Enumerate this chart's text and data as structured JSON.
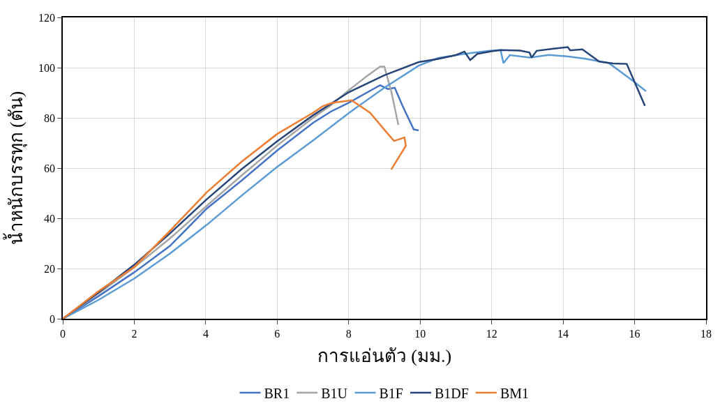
{
  "chart_data": {
    "type": "line",
    "xlabel": "การแอ่นตัว (มม.)",
    "ylabel": "น้ำหนักบรรทุก (ตัน)",
    "xlim": [
      0,
      18
    ],
    "xticks": [
      0,
      2,
      4,
      6,
      8,
      10,
      12,
      14,
      16,
      18
    ],
    "ylim": [
      0,
      120
    ],
    "yticks": [
      0,
      20,
      40,
      60,
      80,
      100,
      120
    ],
    "grid": true,
    "legend": "bottom",
    "marker": "none",
    "line_style": "solid",
    "series": [
      {
        "name": "BR1",
        "color": "#4472c4",
        "x": [
          0,
          1,
          2,
          3,
          4.03,
          5,
          6,
          7,
          7.5,
          8,
          8.5,
          8.88,
          9.1,
          9.29,
          9.5,
          9.82,
          9.96
        ],
        "values": [
          0,
          9,
          18.5,
          29,
          43.9,
          55,
          67,
          78,
          82.5,
          86,
          90,
          93,
          91.5,
          92,
          85,
          75.4,
          75
        ]
      },
      {
        "name": "B1U",
        "color": "#a5a5a5",
        "x": [
          0,
          1,
          2,
          3,
          4.03,
          5,
          6,
          7,
          7.5,
          8,
          8.5,
          8.88,
          9.0,
          9.2,
          9.39
        ],
        "values": [
          0,
          10,
          20.5,
          32,
          45,
          57,
          69,
          80,
          85,
          91,
          96.5,
          100.4,
          100.4,
          90,
          77.2
        ]
      },
      {
        "name": "B1F",
        "color": "#5b9bd5",
        "x": [
          0,
          1,
          2.01,
          3,
          4.03,
          5,
          6,
          7,
          8,
          9,
          9.96,
          10.5,
          11,
          11.5,
          12,
          12.25,
          12.33,
          12.51,
          13.06,
          13.6,
          14.1,
          14.6,
          15.28,
          15.95,
          16.32
        ],
        "values": [
          0,
          7.5,
          16.1,
          26,
          37.4,
          49,
          60.5,
          71,
          81.9,
          92,
          100.8,
          103.8,
          105,
          106,
          106.8,
          107,
          101.8,
          105,
          104,
          105.1,
          104.5,
          103.6,
          101.8,
          94.8,
          90.6
        ]
      },
      {
        "name": "B1DF",
        "color": "#264478",
        "x": [
          0,
          1,
          2,
          3,
          4.03,
          5,
          6,
          7,
          8,
          9,
          9.96,
          10.5,
          11,
          11.24,
          11.4,
          11.6,
          12,
          12.25,
          12.8,
          13.06,
          13.12,
          13.26,
          13.7,
          14.13,
          14.2,
          14.54,
          15.01,
          15.4,
          15.78,
          16.29
        ],
        "values": [
          0,
          10.5,
          21.5,
          34,
          47.6,
          59.5,
          70.7,
          81,
          90.2,
          97,
          102.2,
          103.5,
          105,
          106.4,
          103,
          105.5,
          106.5,
          107,
          106.8,
          106,
          104,
          106.7,
          107.5,
          108.2,
          106.9,
          107.3,
          102.4,
          101.7,
          101.5,
          84.8
        ]
      },
      {
        "name": "BM1",
        "color": "#ed7d31",
        "x": [
          0,
          1,
          2.01,
          3,
          4.03,
          5,
          5.99,
          7,
          7.27,
          7.54,
          8.08,
          8.6,
          9.05,
          9.27,
          9.56,
          9.6,
          9.19
        ],
        "values": [
          0,
          11,
          20.7,
          35,
          50.4,
          62.5,
          73.5,
          82,
          84.6,
          86,
          87,
          82,
          74.4,
          70.8,
          72.2,
          68.9,
          59.4
        ]
      }
    ]
  }
}
